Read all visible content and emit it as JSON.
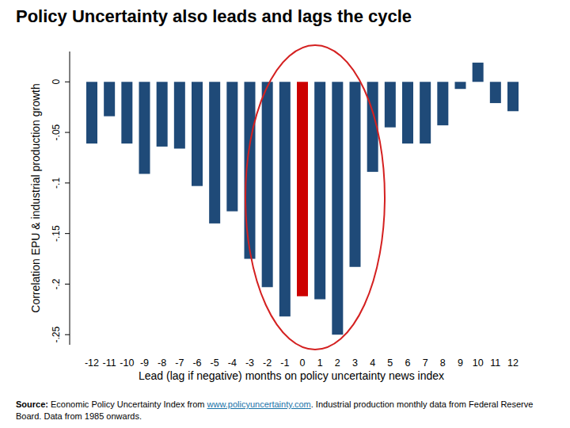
{
  "chart_data": {
    "type": "bar",
    "title": "Policy Uncertainty also leads and lags the cycle",
    "x_label": "Lead (lag if negative) months on policy uncertainty news index",
    "y_label": "Correlation EPU & industrial production growth",
    "categories": [
      "-12",
      "-11",
      "-10",
      "-9",
      "-8",
      "-7",
      "-6",
      "-5",
      "-4",
      "-3",
      "-2",
      "-1",
      "0",
      "1",
      "2",
      "3",
      "4",
      "5",
      "6",
      "7",
      "8",
      "9",
      "10",
      "11",
      "12"
    ],
    "values": [
      -0.061,
      -0.034,
      -0.061,
      -0.091,
      -0.064,
      -0.066,
      -0.103,
      -0.14,
      -0.128,
      -0.175,
      -0.203,
      -0.232,
      -0.212,
      -0.215,
      -0.25,
      -0.183,
      -0.089,
      -0.045,
      -0.061,
      -0.061,
      -0.043,
      -0.007,
      0.019,
      -0.021,
      -0.029
    ],
    "colors": [
      "#1f4a78",
      "#1f4a78",
      "#1f4a78",
      "#1f4a78",
      "#1f4a78",
      "#1f4a78",
      "#1f4a78",
      "#1f4a78",
      "#1f4a78",
      "#1f4a78",
      "#1f4a78",
      "#1f4a78",
      "#cc0000",
      "#1f4a78",
      "#1f4a78",
      "#1f4a78",
      "#1f4a78",
      "#1f4a78",
      "#1f4a78",
      "#1f4a78",
      "#1f4a78",
      "#1f4a78",
      "#1f4a78",
      "#1f4a78",
      "#1f4a78"
    ],
    "ylim": [
      -0.26,
      0.03
    ],
    "yticks": [
      0,
      {
        "value": -0.05,
        "label": "-.05"
      },
      {
        "value": -0.1,
        "label": "-.1"
      },
      {
        "value": -0.15,
        "label": "-.15"
      },
      {
        "value": -0.2,
        "label": "-.2"
      },
      {
        "value": -0.25,
        "label": "-.25"
      }
    ],
    "grid": false,
    "source": {
      "label": "Source:",
      "text_before": "Economic Policy Uncertainty Index from",
      "link": "www.policyuncertainty.com",
      "text_after": ". Industrial production monthly data from Federal Reserve Board. Data from 1985 onwards."
    }
  }
}
